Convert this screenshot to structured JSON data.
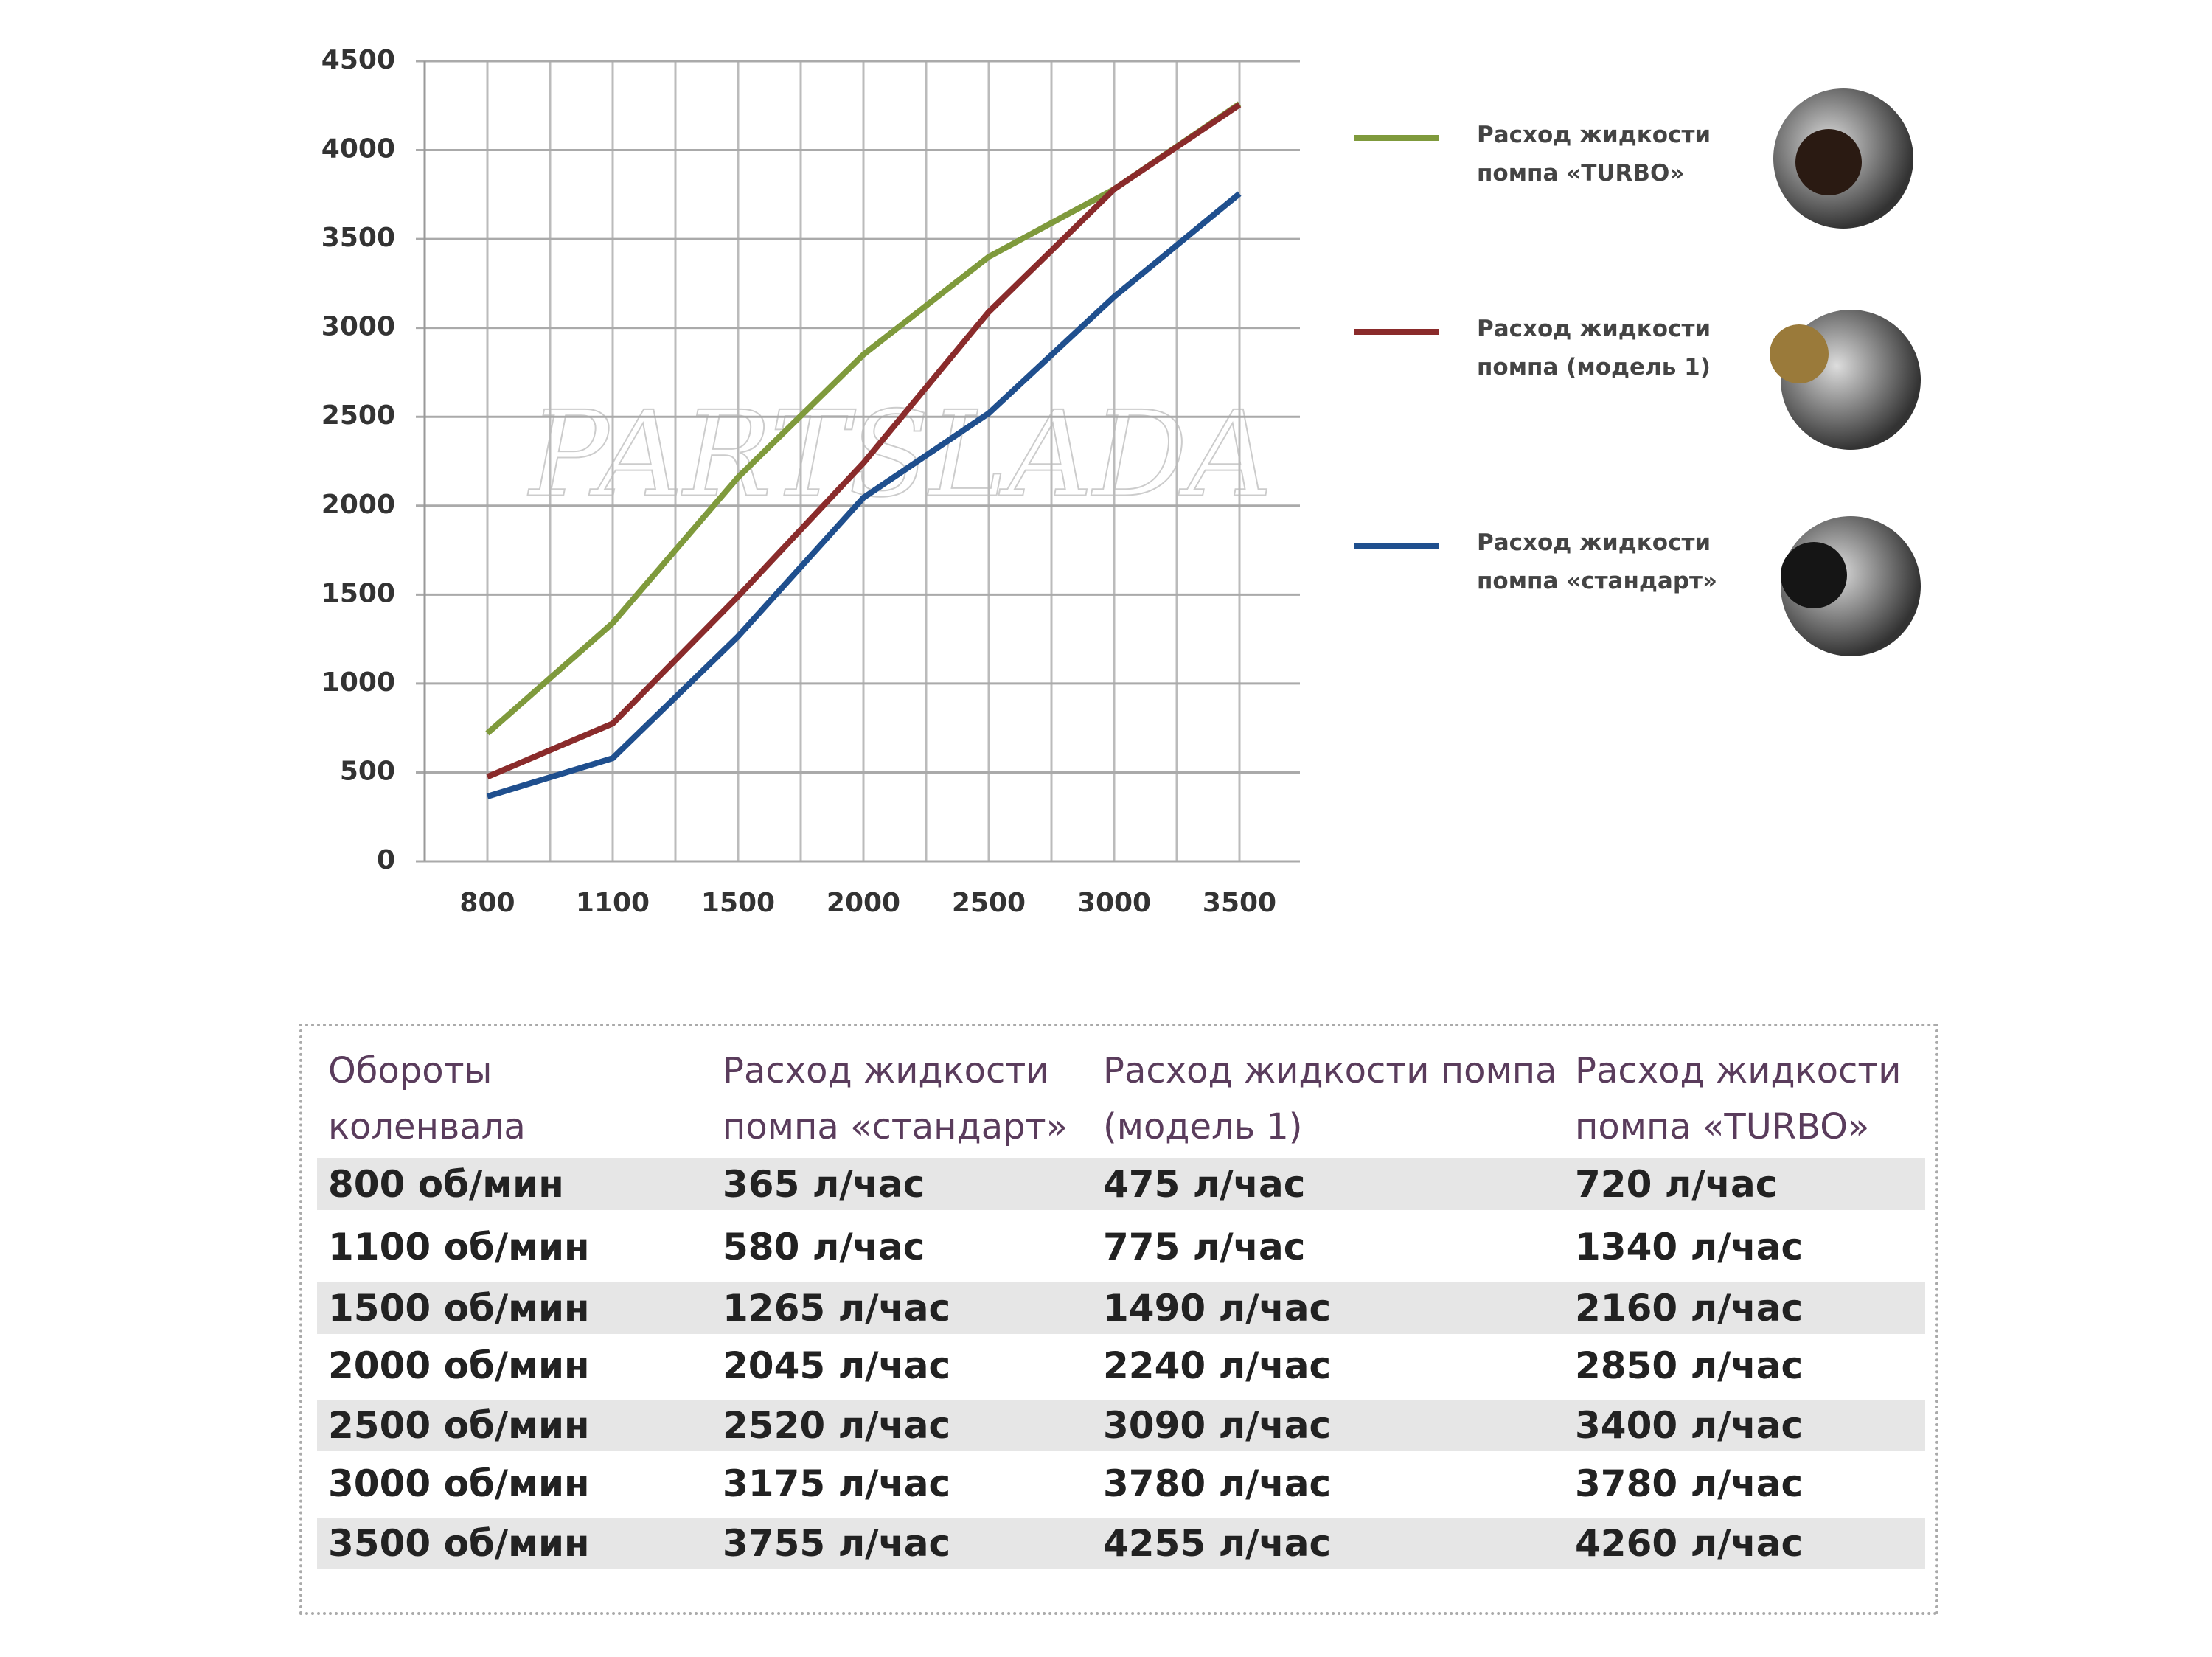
{
  "chart_data": {
    "type": "line",
    "watermark": "PARTSLADA",
    "categories": [
      "800",
      "1100",
      "1500",
      "2000",
      "2500",
      "3000",
      "3500"
    ],
    "series": [
      {
        "name": "Расход жидкости помпа «TURBO»",
        "color": "#7f9a3c",
        "values": [
          720,
          1340,
          2160,
          2850,
          3400,
          3780,
          4260
        ]
      },
      {
        "name": "Расход жидкости помпа (модель 1)",
        "color": "#8a2b2b",
        "values": [
          475,
          775,
          1490,
          2240,
          3090,
          3780,
          4255
        ]
      },
      {
        "name": "Расход жидкости помпа «стандарт»",
        "color": "#1f4f8e",
        "values": [
          365,
          580,
          1265,
          2045,
          2520,
          3175,
          3755
        ]
      }
    ],
    "ylim": [
      0,
      4500
    ],
    "yticks": [
      0,
      500,
      1000,
      1500,
      2000,
      2500,
      3000,
      3500,
      4000,
      4500
    ],
    "grid": true
  },
  "table": {
    "header": [
      "Обороты коленвала",
      "Расход жидкости помпа «стандарт»",
      "Расход жидкости помпа (модель 1)",
      "Расход жидкости помпа «TURBO»"
    ],
    "rows": [
      [
        "800 об/мин",
        "365 л/час",
        "475 л/час",
        "720 л/час"
      ],
      [
        "1100 об/мин",
        "580 л/час",
        "775 л/час",
        "1340 л/час"
      ],
      [
        "1500 об/мин",
        "1265 л/час",
        "1490 л/час",
        "2160 л/час"
      ],
      [
        "2000 об/мин",
        "2045 л/час",
        "2240 л/час",
        "2850 л/час"
      ],
      [
        "2500 об/мин",
        "2520 л/час",
        "3090 л/час",
        "3400 л/час"
      ],
      [
        "3000 об/мин",
        "3175 л/час",
        "3780 л/час",
        "3780 л/час"
      ],
      [
        "3500 об/мин",
        "3755 л/час",
        "4255 л/час",
        "4260 л/час"
      ]
    ]
  }
}
